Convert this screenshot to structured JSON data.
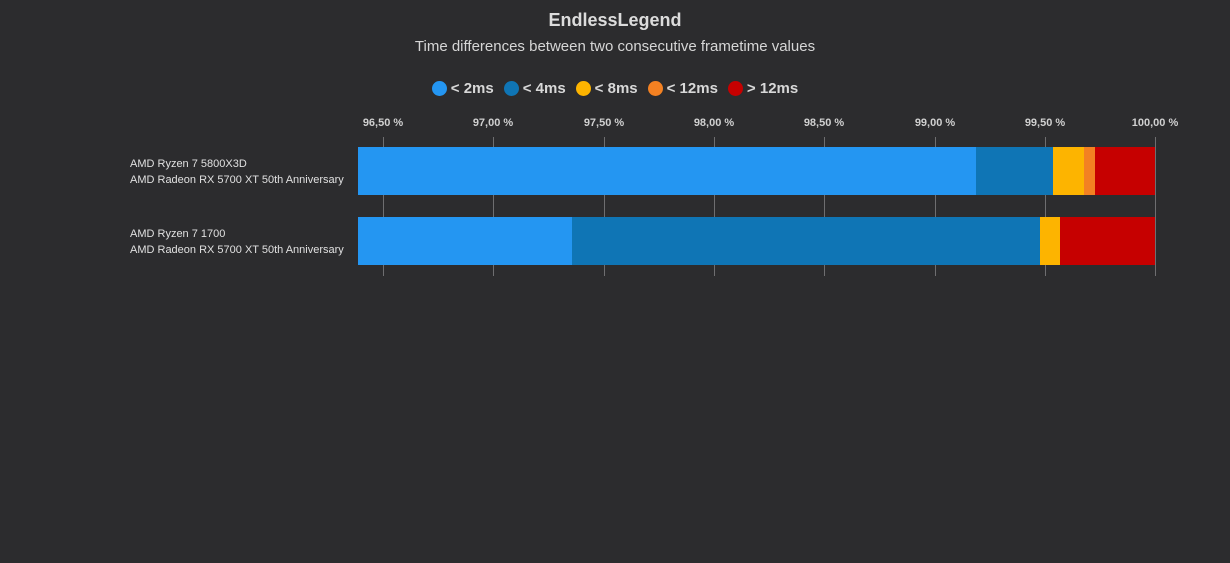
{
  "header": {
    "title": "EndlessLegend",
    "subtitle": "Time differences between two consecutive frametime values"
  },
  "legend": [
    {
      "label": "< 2ms",
      "color": "#2496f2"
    },
    {
      "label": "< 4ms",
      "color": "#0f75b5"
    },
    {
      "label": "< 8ms",
      "color": "#fdb400"
    },
    {
      "label": "< 12ms",
      "color": "#f38122"
    },
    {
      "label": "> 12ms",
      "color": "#c60000"
    }
  ],
  "axis": {
    "ticks": [
      "96,50 %",
      "97,00 %",
      "97,50 %",
      "98,00 %",
      "98,50 %",
      "99,00 %",
      "99,50 %",
      "100,00 %"
    ]
  },
  "rows": [
    {
      "line1": "AMD Ryzen 7 5800X3D",
      "line2": "AMD Radeon RX 5700 XT 50th Anniversary"
    },
    {
      "line1": "AMD Ryzen 7 1700",
      "line2": "AMD Radeon RX 5700 XT 50th Anniversary"
    }
  ],
  "chart_data": {
    "type": "bar",
    "orientation": "horizontal",
    "stacked": true,
    "title": "EndlessLegend",
    "subtitle": "Time differences between two consecutive frametime values",
    "categories": [
      "AMD Ryzen 7 5800X3D / AMD Radeon RX 5700 XT 50th Anniversary",
      "AMD Ryzen 7 1700 / AMD Radeon RX 5700 XT 50th Anniversary"
    ],
    "series": [
      {
        "name": "< 2ms",
        "color": "#2496f2",
        "values": [
          99.19,
          97.36
        ]
      },
      {
        "name": "< 4ms",
        "color": "#0f75b5",
        "values": [
          0.35,
          2.12
        ]
      },
      {
        "name": "< 8ms",
        "color": "#fdb400",
        "values": [
          0.14,
          0.09
        ]
      },
      {
        "name": "< 12ms",
        "color": "#f38122",
        "values": [
          0.05,
          0.0
        ]
      },
      {
        "name": "> 12ms",
        "color": "#c60000",
        "values": [
          0.27,
          0.43
        ]
      }
    ],
    "xlabel": "",
    "ylabel": "",
    "xlim": [
      96.39,
      100.0
    ],
    "x_ticks": [
      96.5,
      97.0,
      97.5,
      98.0,
      98.5,
      99.0,
      99.5,
      100.0
    ],
    "x_tick_labels": [
      "96,50 %",
      "97,00 %",
      "97,50 %",
      "98,00 %",
      "98,50 %",
      "99,00 %",
      "99,50 %",
      "100,00 %"
    ],
    "grid": true,
    "legend_position": "top"
  }
}
